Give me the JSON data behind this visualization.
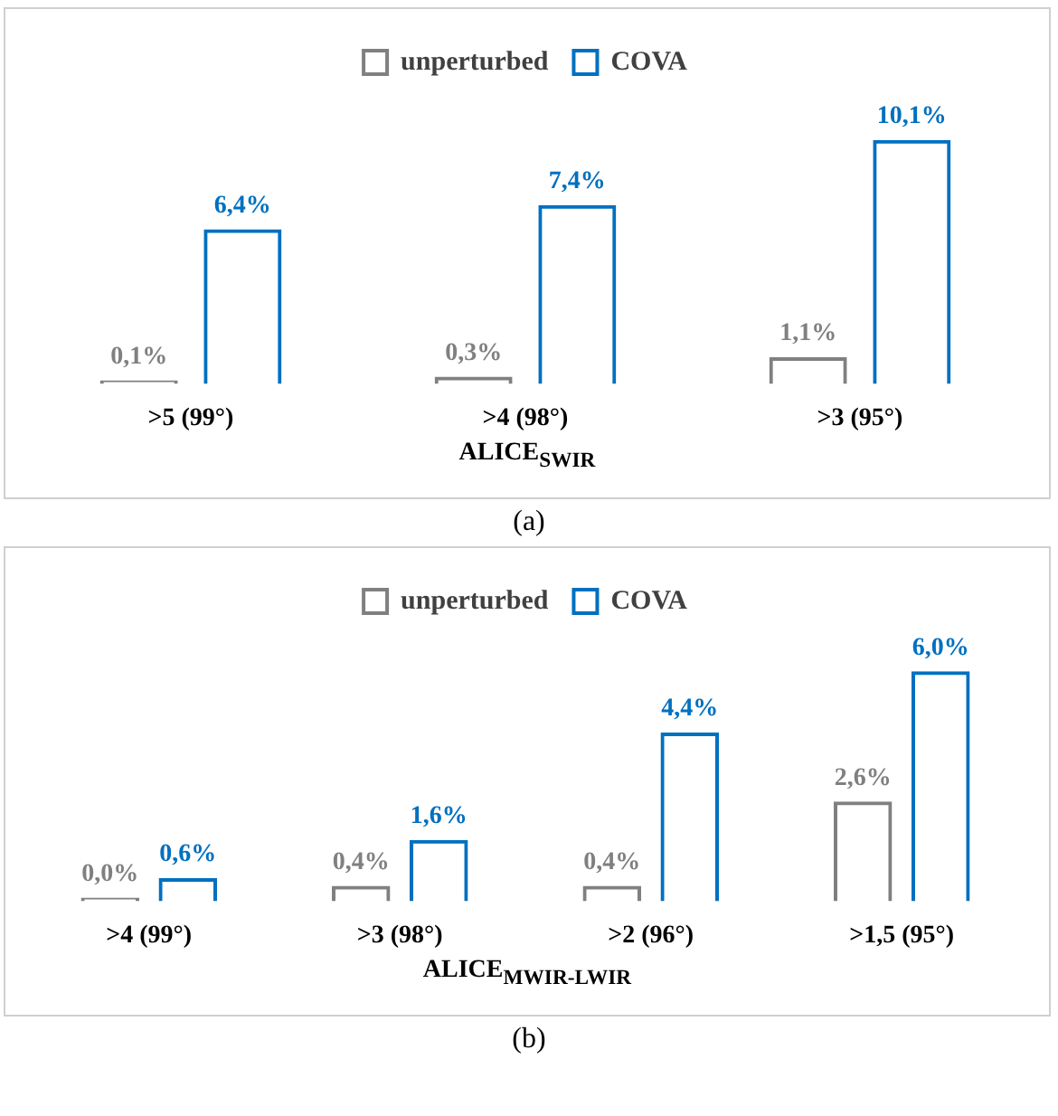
{
  "chart_data": [
    {
      "type": "bar",
      "categories": [
        ">5 (99°)",
        ">4 (98°)",
        ">3 (95°)"
      ],
      "xlabel": "ALICE$_{SWIR}$",
      "legend": "top",
      "annotations": [
        "(a)"
      ],
      "series": [
        {
          "name": "unperturbed",
          "color": "#808080",
          "values": [
            0.1,
            0.3,
            1.1
          ],
          "value_labels": [
            "0,1%",
            "0,3%",
            "1,1%"
          ]
        },
        {
          "name": "COVA",
          "color": "#0070c0",
          "values": [
            6.4,
            7.4,
            10.1
          ],
          "value_labels": [
            "6,4%",
            "7,4%",
            "10,1%"
          ]
        }
      ]
    },
    {
      "type": "bar",
      "categories": [
        ">4 (99°)",
        ">3 (98°)",
        ">2 (96°)",
        ">1,5 (95°)"
      ],
      "xlabel": "ALICE$_{MWIR-LWIR}$",
      "legend": "top",
      "annotations": [
        "(b)"
      ],
      "series": [
        {
          "name": "unperturbed",
          "color": "#808080",
          "values": [
            0.0,
            0.4,
            0.4,
            2.6
          ],
          "value_labels": [
            "0,0%",
            "0,4%",
            "0,4%",
            "2,6%"
          ]
        },
        {
          "name": "COVA",
          "color": "#0070c0",
          "values": [
            0.6,
            1.6,
            4.4,
            6.0
          ],
          "value_labels": [
            "0,6%",
            "1,6%",
            "4,4%",
            "6,0%"
          ]
        }
      ]
    }
  ]
}
